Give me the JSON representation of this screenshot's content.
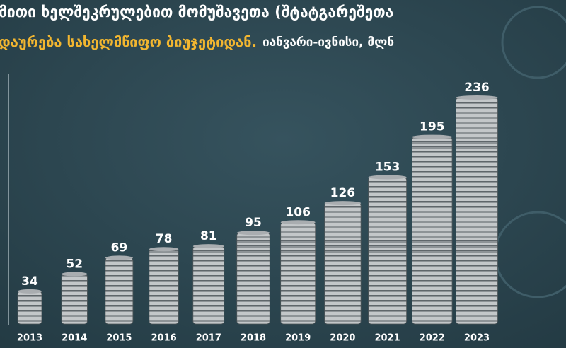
{
  "chart_data": {
    "type": "bar",
    "title": "მითი ხელშეკრულებით მომუშავეთა (შტატგარეშეთა",
    "subtitle": "დაურება სახელმწიფო ბიუჯეტიდან.",
    "subtitle_note": "იანვარი-ივნისი, მლნ",
    "categories": [
      "2013",
      "2014",
      "2015",
      "2016",
      "2017",
      "2018",
      "2019",
      "2020",
      "2021",
      "2022",
      "2023"
    ],
    "values": [
      34,
      52,
      69,
      78,
      81,
      95,
      106,
      126,
      153,
      195,
      236
    ],
    "color": "#a9adb0",
    "ylim": [
      0,
      250
    ]
  }
}
